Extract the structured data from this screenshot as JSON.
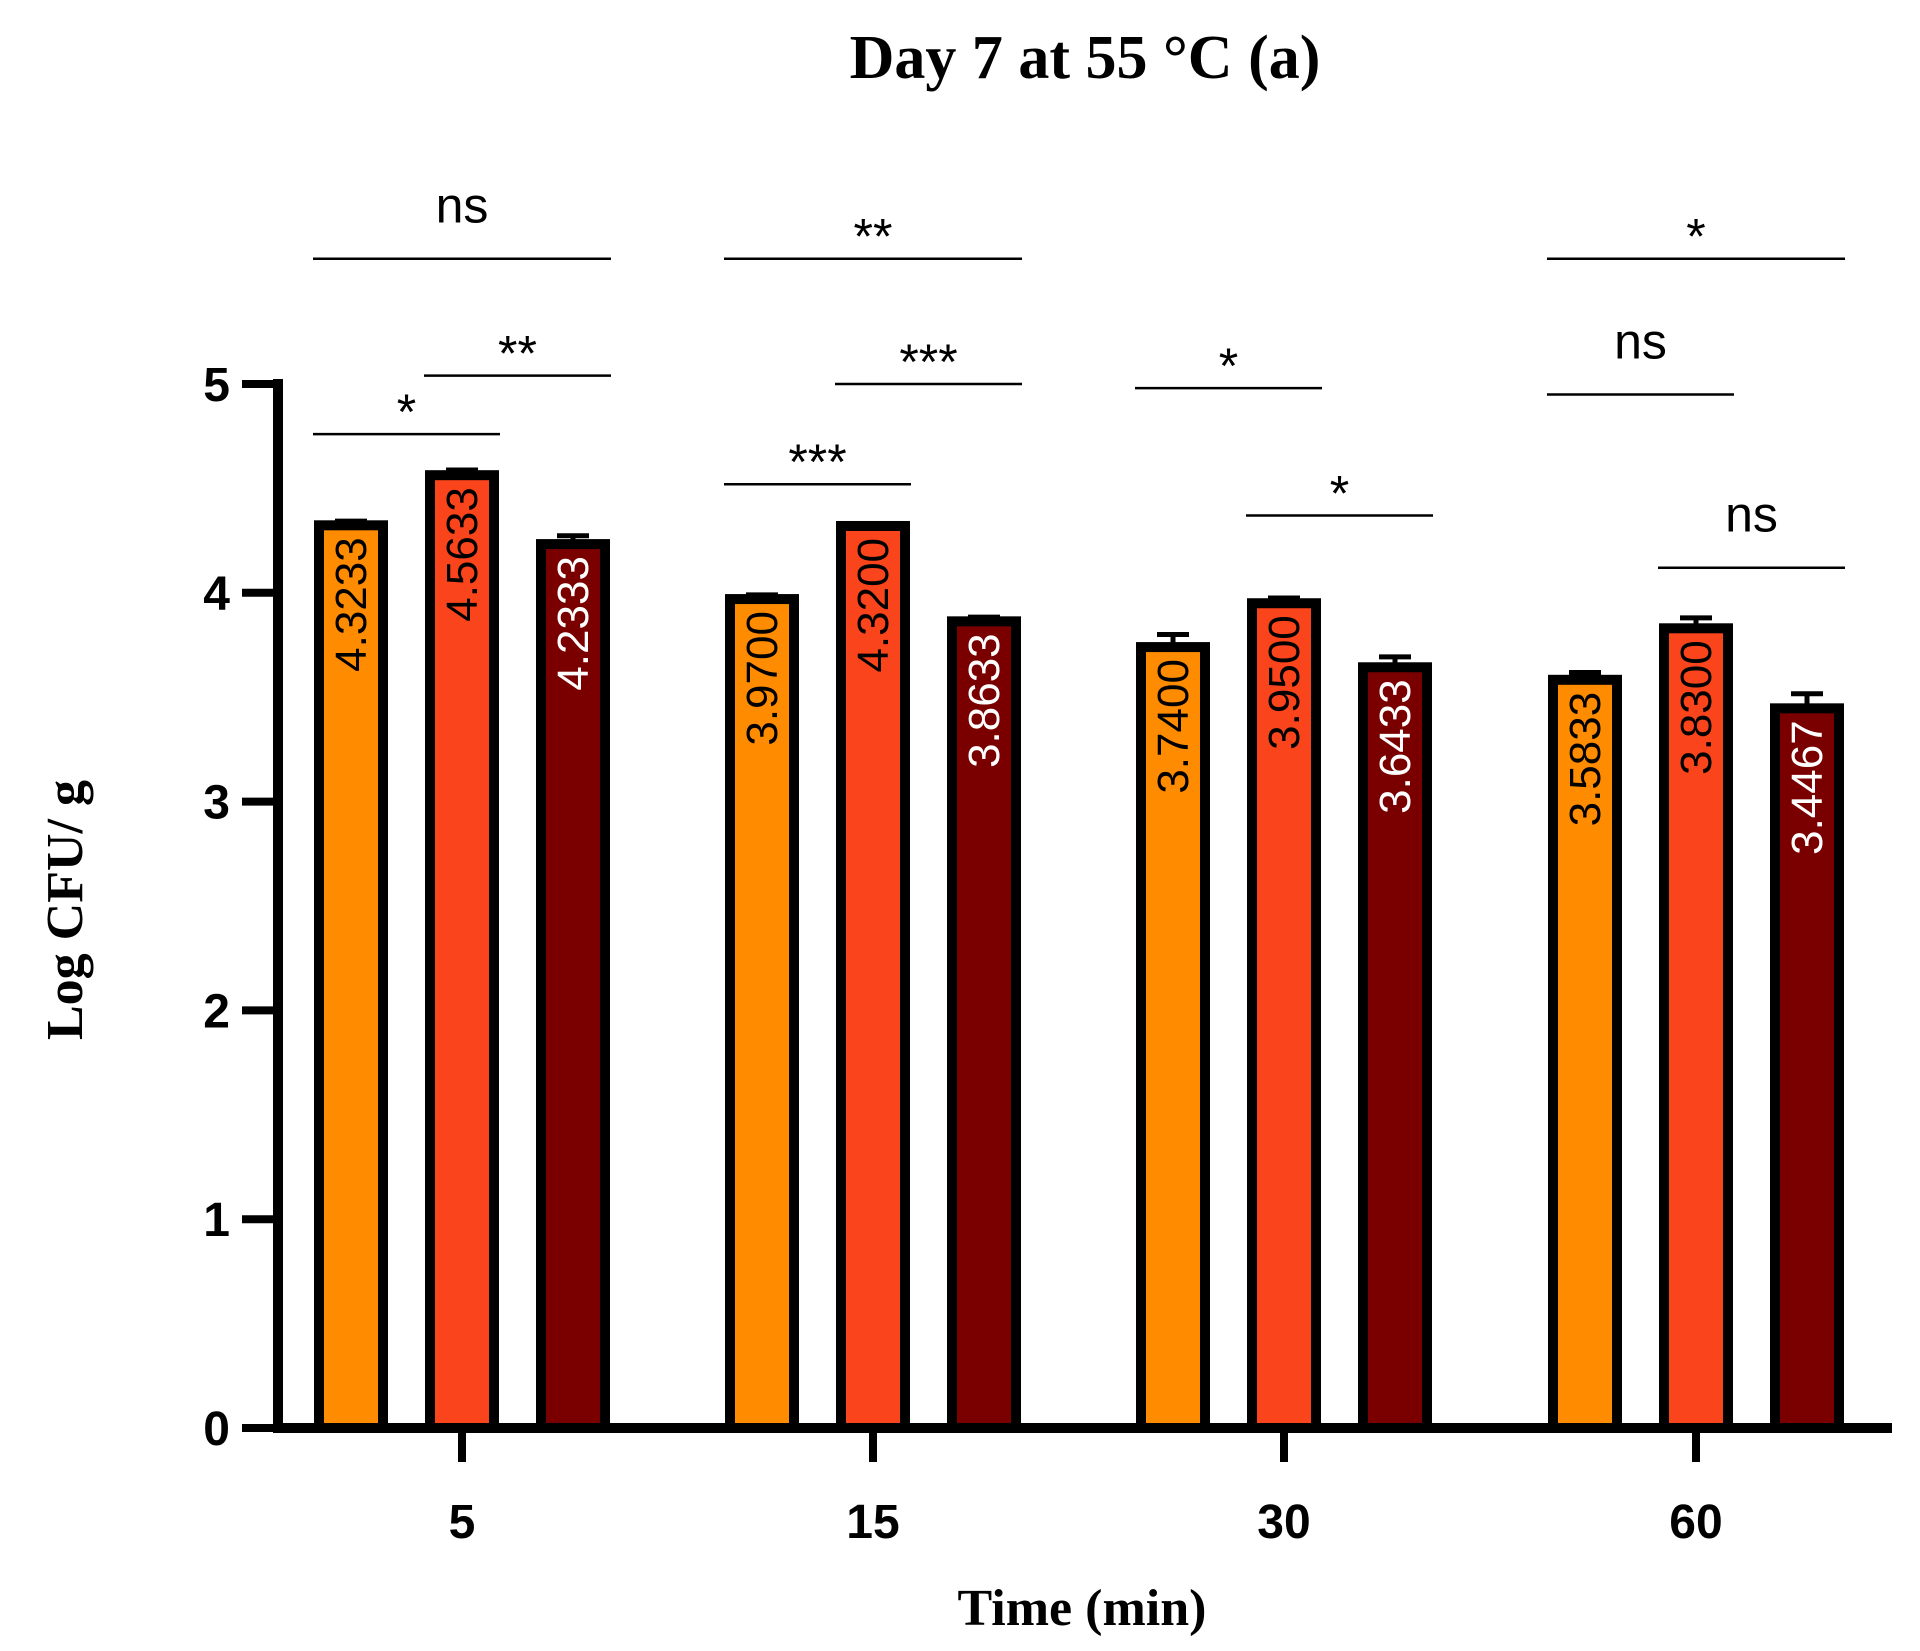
{
  "chart_data": {
    "type": "bar",
    "title": "Day 7 at 55 °C (a)",
    "xlabel": "Time (min)",
    "ylabel": "Log CFU/ g",
    "ylim": [
      0,
      5
    ],
    "yticks": [
      "0",
      "1",
      "2",
      "3",
      "4",
      "5"
    ],
    "categories": [
      "5",
      "15",
      "30",
      "60"
    ],
    "series": [
      {
        "name": "series 1",
        "color": "#FF8C00",
        "label_color": "#000000",
        "values": [
          4.3233,
          3.97,
          3.74,
          3.5833
        ],
        "errors": [
          0.02,
          0.02,
          0.06,
          0.035
        ],
        "labels": [
          "4.3233",
          "3.9700",
          "3.7400",
          "3.5833"
        ]
      },
      {
        "name": "series 2",
        "color": "#FA441C",
        "label_color": "#000000",
        "values": [
          4.5633,
          4.32,
          3.95,
          3.83
        ],
        "errors": [
          0.025,
          0.01,
          0.025,
          0.05
        ],
        "labels": [
          "4.5633",
          "4.3200",
          "3.9500",
          "3.8300"
        ]
      },
      {
        "name": "series 3",
        "color": "#7A0000",
        "label_color": "#ffffff",
        "values": [
          4.2333,
          3.8633,
          3.6433,
          3.4467
        ],
        "errors": [
          0.04,
          0.02,
          0.05,
          0.07
        ],
        "labels": [
          "4.2333",
          "3.8633",
          "3.6433",
          "3.4467"
        ]
      }
    ],
    "significance": [
      {
        "category": 0,
        "from": 0,
        "to": 2,
        "label": "ns",
        "level": 5.6
      },
      {
        "category": 0,
        "from": 1,
        "to": 2,
        "label": "**",
        "level": 5.04
      },
      {
        "category": 0,
        "from": 0,
        "to": 1,
        "label": "*",
        "level": 4.76
      },
      {
        "category": 1,
        "from": 0,
        "to": 2,
        "label": "**",
        "level": 5.6
      },
      {
        "category": 1,
        "from": 1,
        "to": 2,
        "label": "***",
        "level": 5.0
      },
      {
        "category": 1,
        "from": 0,
        "to": 1,
        "label": "***",
        "level": 4.52
      },
      {
        "category": 2,
        "from": 0,
        "to": 1,
        "label": "*",
        "level": 4.98
      },
      {
        "category": 2,
        "from": 1,
        "to": 2,
        "label": "*",
        "level": 4.37
      },
      {
        "category": 3,
        "from": 0,
        "to": 2,
        "label": "*",
        "level": 5.6
      },
      {
        "category": 3,
        "from": 0,
        "to": 1,
        "label": "ns",
        "level": 4.95
      },
      {
        "category": 3,
        "from": 1,
        "to": 2,
        "label": "ns",
        "level": 4.12
      }
    ]
  }
}
